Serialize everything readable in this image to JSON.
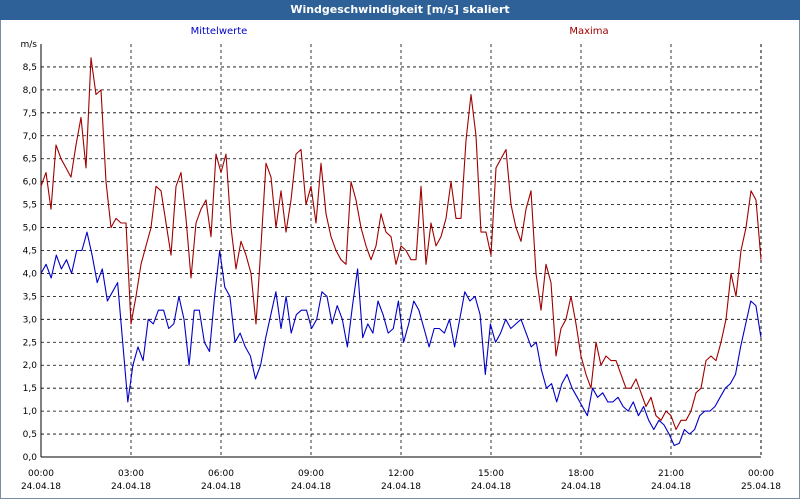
{
  "window": {
    "title": "Windgeschwindigkeit [m/s] skaliert"
  },
  "colors": {
    "mittel": "#0000c8",
    "maxima": "#a00000",
    "grid": "#000000",
    "titlebar": "#2e6197"
  },
  "chart_data": {
    "type": "line",
    "ylabel": "m/s",
    "ylim": [
      0,
      9
    ],
    "yticks": [
      0.0,
      0.5,
      1.0,
      1.5,
      2.0,
      2.5,
      3.0,
      3.5,
      4.0,
      4.5,
      5.0,
      5.5,
      6.0,
      6.5,
      7.0,
      7.5,
      8.0,
      8.5
    ],
    "ytick_labels": [
      "0,0",
      "0,5",
      "1,0",
      "1,5",
      "2,0",
      "2,5",
      "3,0",
      "3,5",
      "4,0",
      "4,5",
      "5,0",
      "5,5",
      "6,0",
      "6,5",
      "7,0",
      "7,5",
      "8,0",
      "8,5"
    ],
    "xticks": [
      {
        "time": "00:00",
        "date": "24.04.18"
      },
      {
        "time": "03:00",
        "date": "24.04.18"
      },
      {
        "time": "06:00",
        "date": "24.04.18"
      },
      {
        "time": "09:00",
        "date": "24.04.18"
      },
      {
        "time": "12:00",
        "date": "24.04.18"
      },
      {
        "time": "15:00",
        "date": "24.04.18"
      },
      {
        "time": "18:00",
        "date": "24.04.18"
      },
      {
        "time": "21:00",
        "date": "24.04.18"
      },
      {
        "time": "00:00",
        "date": "25.04.18"
      }
    ],
    "xlim": [
      "24.04.18 00:00",
      "25.04.18 00:00"
    ],
    "grid": true,
    "series": [
      {
        "name": "Mittelwerte",
        "color": "#0000c8",
        "values": [
          4.0,
          4.2,
          3.9,
          4.4,
          4.1,
          4.3,
          4.0,
          4.5,
          4.5,
          4.9,
          4.4,
          3.8,
          4.1,
          3.4,
          3.6,
          3.8,
          2.5,
          1.2,
          2.0,
          2.4,
          2.1,
          3.0,
          2.9,
          3.2,
          3.2,
          2.8,
          2.9,
          3.5,
          3.0,
          2.0,
          3.2,
          3.2,
          2.5,
          2.3,
          3.5,
          4.5,
          3.7,
          3.5,
          2.5,
          2.7,
          2.4,
          2.2,
          1.7,
          2.0,
          2.6,
          3.1,
          3.6,
          2.8,
          3.5,
          2.7,
          3.1,
          3.2,
          3.2,
          2.8,
          3.0,
          3.6,
          3.5,
          2.9,
          3.3,
          3.0,
          2.4,
          3.3,
          4.1,
          2.6,
          2.9,
          2.7,
          3.4,
          3.1,
          2.7,
          2.8,
          3.4,
          2.5,
          2.9,
          3.4,
          3.2,
          2.8,
          2.4,
          2.8,
          2.8,
          2.7,
          3.0,
          2.4,
          3.0,
          3.6,
          3.4,
          3.5,
          3.1,
          1.8,
          2.9,
          2.5,
          2.7,
          3.0,
          2.8,
          2.9,
          3.0,
          2.7,
          2.4,
          2.5,
          1.9,
          1.5,
          1.6,
          1.2,
          1.6,
          1.8,
          1.5,
          1.3,
          1.1,
          0.9,
          1.5,
          1.3,
          1.4,
          1.2,
          1.2,
          1.3,
          1.1,
          1.0,
          1.2,
          0.9,
          1.1,
          0.8,
          0.6,
          0.8,
          0.7,
          0.5,
          0.25,
          0.3,
          0.6,
          0.5,
          0.6,
          0.9,
          1.0,
          1.0,
          1.1,
          1.3,
          1.5,
          1.6,
          1.8,
          2.4,
          2.9,
          3.4,
          3.3,
          2.6
        ]
      },
      {
        "name": "Maxima",
        "color": "#a00000",
        "values": [
          5.9,
          6.2,
          5.4,
          6.8,
          6.5,
          6.3,
          6.1,
          6.8,
          7.4,
          6.3,
          8.7,
          7.9,
          8.0,
          6.0,
          5.0,
          5.2,
          5.1,
          5.1,
          2.9,
          3.5,
          4.2,
          4.6,
          5.0,
          5.9,
          5.8,
          5.1,
          4.4,
          5.9,
          6.2,
          5.2,
          3.9,
          5.1,
          5.4,
          5.6,
          4.8,
          6.6,
          6.2,
          6.6,
          5.0,
          4.1,
          4.7,
          4.4,
          4.0,
          2.9,
          4.6,
          6.4,
          6.1,
          5.0,
          5.8,
          4.9,
          5.6,
          6.6,
          6.7,
          5.5,
          5.9,
          5.1,
          6.4,
          5.3,
          4.8,
          4.5,
          4.3,
          4.2,
          6.0,
          5.6,
          5.0,
          4.6,
          4.3,
          4.6,
          5.3,
          4.9,
          4.8,
          4.2,
          4.6,
          4.5,
          4.3,
          4.3,
          5.9,
          4.2,
          5.1,
          4.6,
          4.8,
          5.2,
          6.0,
          5.2,
          5.2,
          6.9,
          7.9,
          7.0,
          4.9,
          4.9,
          4.4,
          6.3,
          6.5,
          6.7,
          5.5,
          5.0,
          4.7,
          5.4,
          5.8,
          4.0,
          3.2,
          4.2,
          3.8,
          2.2,
          2.8,
          3.0,
          3.5,
          2.9,
          2.2,
          1.8,
          1.5,
          2.5,
          2.0,
          2.2,
          2.1,
          2.1,
          1.8,
          1.5,
          1.5,
          1.7,
          1.4,
          1.1,
          1.3,
          0.9,
          0.8,
          1.0,
          0.9,
          0.6,
          0.8,
          0.8,
          1.0,
          1.4,
          1.5,
          2.1,
          2.2,
          2.1,
          2.5,
          3.0,
          4.0,
          3.5,
          4.5,
          5.0,
          5.8,
          5.6,
          4.3
        ]
      }
    ]
  }
}
